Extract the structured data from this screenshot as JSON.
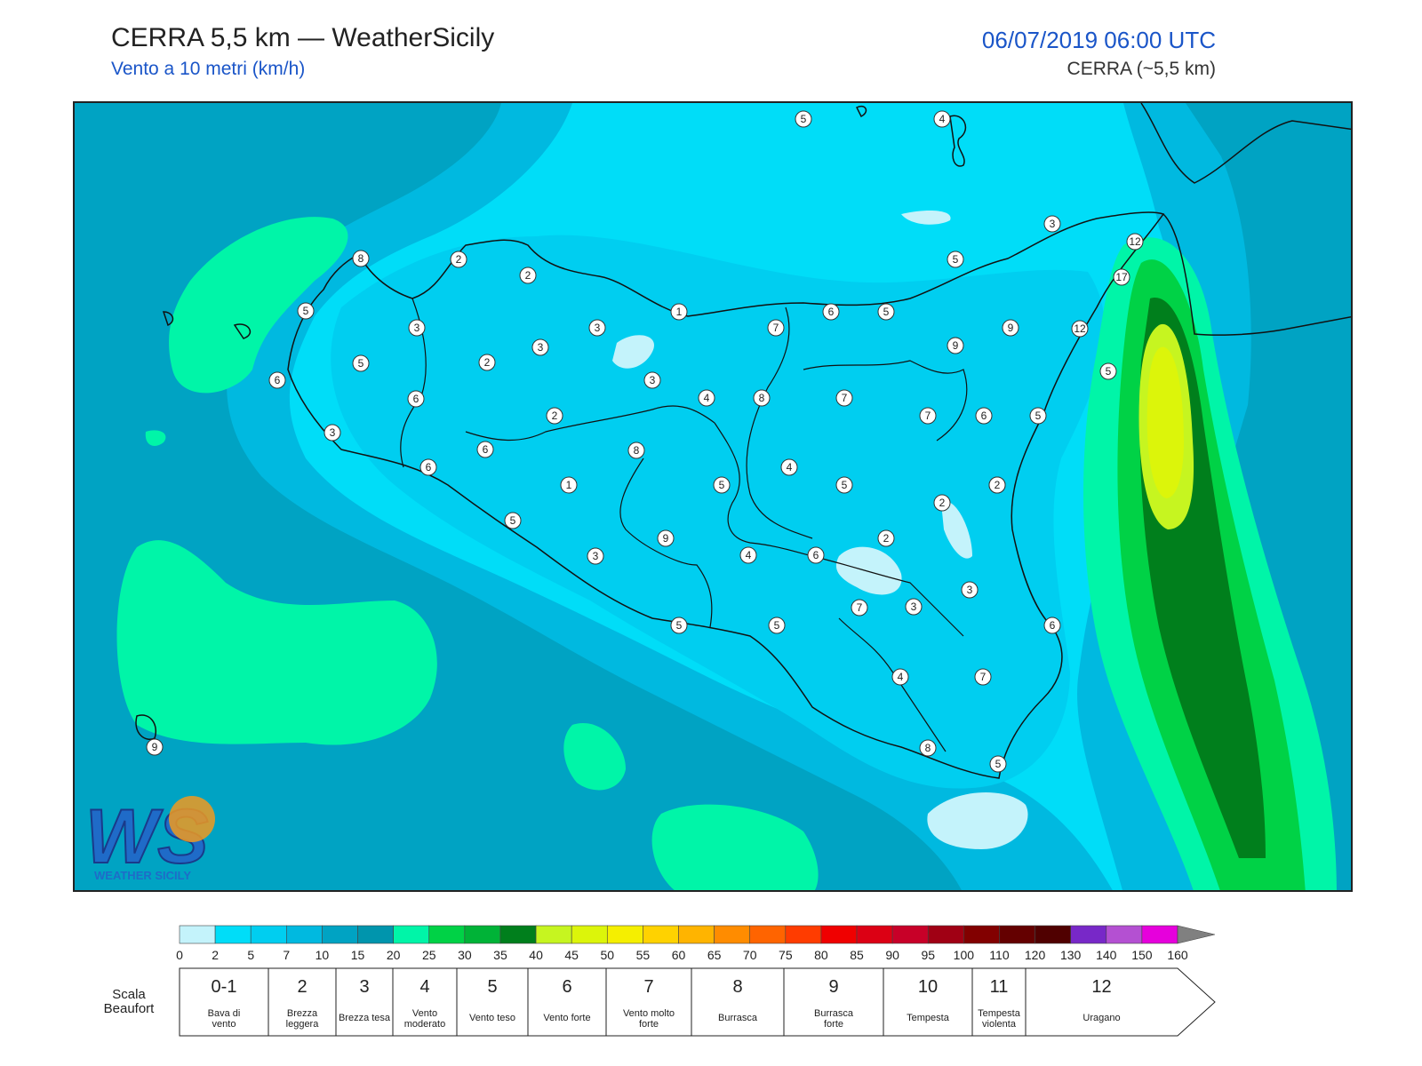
{
  "header": {
    "title": "CERRA 5,5 km — WeatherSicily",
    "subtitle": "Vento a 10 metri (km/h)",
    "datetime": "06/07/2019 06:00 UTC",
    "model": "CERRA (~5,5 km)"
  },
  "logo": {
    "letters": "WS",
    "text": "WEATHER SICILY"
  },
  "colorbar": {
    "ticks": [
      "0",
      "2",
      "5",
      "7",
      "10",
      "15",
      "20",
      "25",
      "30",
      "35",
      "40",
      "45",
      "50",
      "55",
      "60",
      "65",
      "70",
      "75",
      "80",
      "85",
      "90",
      "95",
      "100",
      "110",
      "120",
      "130",
      "140",
      "150",
      "160"
    ],
    "colors": [
      "#c4f3fb",
      "#00ddf8",
      "#00cef0",
      "#00b9e0",
      "#00a3c3",
      "#0095ad",
      "#00f5a8",
      "#00d246",
      "#00b337",
      "#007f1c",
      "#c6f520",
      "#dcf50a",
      "#f5ef00",
      "#ffd200",
      "#ffb400",
      "#ff8c00",
      "#ff6400",
      "#ff3c00",
      "#f00000",
      "#dc0014",
      "#c80028",
      "#a00014",
      "#820000",
      "#640000",
      "#500000",
      "#7828c8",
      "#b450d2",
      "#e600dc",
      "#808080",
      "#505050",
      "#000000",
      "#7a4020",
      "#c87830"
    ]
  },
  "beaufort": {
    "title": "Scala Beaufort",
    "classes": [
      {
        "num": "0-1",
        "label": "Bava di vento"
      },
      {
        "num": "2",
        "label": "Brezza leggera"
      },
      {
        "num": "3",
        "label": "Brezza tesa"
      },
      {
        "num": "4",
        "label": "Vento moderato"
      },
      {
        "num": "5",
        "label": "Vento teso"
      },
      {
        "num": "6",
        "label": "Vento forte"
      },
      {
        "num": "7",
        "label": "Vento molto forte"
      },
      {
        "num": "8",
        "label": "Burrasca"
      },
      {
        "num": "9",
        "label": "Burrasca forte"
      },
      {
        "num": "10",
        "label": "Tempesta"
      },
      {
        "num": "11",
        "label": "Tempesta violenta"
      },
      {
        "num": "12",
        "label": "Uragano"
      }
    ]
  },
  "stations": [
    "5",
    "4",
    "3",
    "12",
    "8",
    "2",
    "2",
    "5",
    "17",
    "5",
    "1",
    "3",
    "3",
    "6",
    "5",
    "9",
    "12",
    "6",
    "3",
    "7",
    "5",
    "2",
    "3",
    "9",
    "5",
    "3",
    "4",
    "8",
    "7",
    "7",
    "6",
    "5",
    "6",
    "2",
    "6",
    "8",
    "6",
    "4",
    "5",
    "1",
    "5",
    "7",
    "2",
    "2",
    "9",
    "5",
    "4",
    "6",
    "2",
    "3",
    "3",
    "7",
    "6",
    "5",
    "5",
    "3",
    "4",
    "7",
    "9",
    "8",
    "5"
  ]
}
